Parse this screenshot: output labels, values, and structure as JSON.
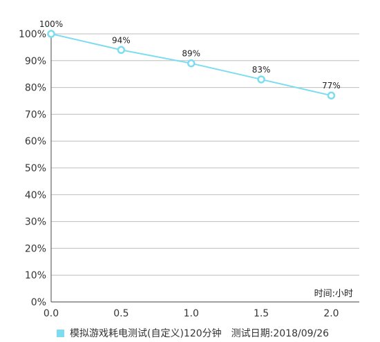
{
  "chart_data": {
    "type": "line",
    "x": [
      0.0,
      0.5,
      1.0,
      1.5,
      2.0
    ],
    "x_tick_labels": [
      "0.0",
      "0.5",
      "1.0",
      "1.5",
      "2.0"
    ],
    "xlim": [
      0.0,
      2.2
    ],
    "ylim": [
      0,
      100
    ],
    "y_ticks": [
      0,
      10,
      20,
      30,
      40,
      50,
      60,
      70,
      80,
      90,
      100
    ],
    "y_tick_labels": [
      "0%",
      "10%",
      "20%",
      "30%",
      "40%",
      "50%",
      "60%",
      "70%",
      "80%",
      "90%",
      "100%"
    ],
    "series": [
      {
        "name": "模拟游戏耗电测试(自定义)120分钟",
        "values": [
          100,
          94,
          89,
          83,
          77
        ],
        "data_labels": [
          "100%",
          "94%",
          "89%",
          "83%",
          "77%"
        ],
        "color": "#7ddcf0"
      }
    ],
    "xlabel": "时间:小时",
    "grid": "horizontal",
    "legend_position": "bottom-left",
    "legend_extra_text": "测试日期:2018/09/26"
  }
}
